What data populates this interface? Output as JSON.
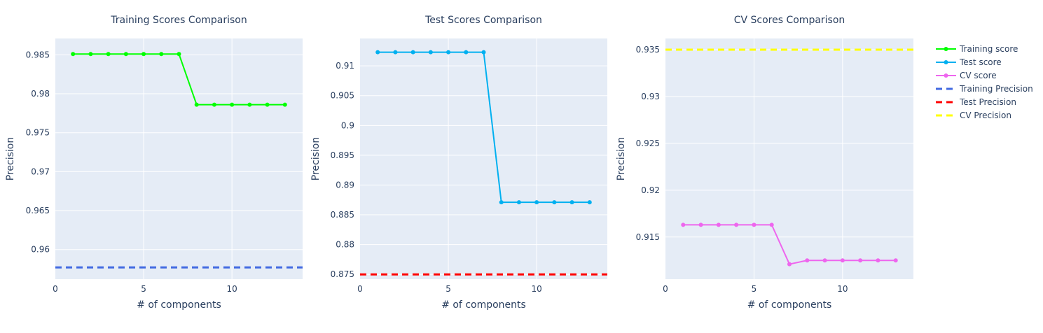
{
  "chart_data": [
    {
      "type": "line",
      "title": "Training Scores Comparison",
      "xlabel": "# of components",
      "ylabel": "Precision",
      "xlim": [
        0,
        14
      ],
      "ylim": [
        0.9562,
        0.9871
      ],
      "xticks": [
        0,
        5,
        10
      ],
      "yticks": [
        0.96,
        0.965,
        0.97,
        0.975,
        0.98,
        0.985
      ],
      "x": [
        1,
        2,
        3,
        4,
        5,
        6,
        7,
        8,
        9,
        10,
        11,
        12,
        13
      ],
      "series": [
        {
          "name": "Training score",
          "color": "#00ff00",
          "style": "lines+markers",
          "values": [
            0.9851,
            0.9851,
            0.9851,
            0.9851,
            0.9851,
            0.9851,
            0.9851,
            0.9786,
            0.9786,
            0.9786,
            0.9786,
            0.9786,
            0.9786
          ]
        },
        {
          "name": "Training Precision",
          "color": "#4169e1",
          "style": "dash",
          "hline": 0.9577
        }
      ]
    },
    {
      "type": "line",
      "title": "Test Scores Comparison",
      "xlabel": "# of components",
      "ylabel": "Precision",
      "xlim": [
        0,
        14
      ],
      "ylim": [
        0.8742,
        0.9146
      ],
      "xticks": [
        0,
        5,
        10
      ],
      "yticks": [
        0.875,
        0.88,
        0.885,
        0.89,
        0.895,
        0.9,
        0.905,
        0.91
      ],
      "x": [
        1,
        2,
        3,
        4,
        5,
        6,
        7,
        8,
        9,
        10,
        11,
        12,
        13
      ],
      "series": [
        {
          "name": "Test score",
          "color": "#00b0f0",
          "style": "lines+markers",
          "values": [
            0.9123,
            0.9123,
            0.9123,
            0.9123,
            0.9123,
            0.9123,
            0.9123,
            0.8871,
            0.8871,
            0.8871,
            0.8871,
            0.8871,
            0.8871
          ]
        },
        {
          "name": "Test Precision",
          "color": "#ff0000",
          "style": "dash",
          "hline": 0.875
        }
      ]
    },
    {
      "type": "line",
      "title": "CV Scores Comparison",
      "xlabel": "# of components",
      "ylabel": "Precision",
      "xlim": [
        0,
        14
      ],
      "ylim": [
        0.9105,
        0.9362
      ],
      "xticks": [
        0,
        5,
        10
      ],
      "yticks": [
        0.915,
        0.92,
        0.925,
        0.93,
        0.935
      ],
      "x": [
        1,
        2,
        3,
        4,
        5,
        6,
        7,
        8,
        9,
        10,
        11,
        12,
        13
      ],
      "series": [
        {
          "name": "CV score",
          "color": "#ee66ee",
          "style": "lines+markers",
          "values": [
            0.9163,
            0.9163,
            0.9163,
            0.9163,
            0.9163,
            0.9163,
            0.9121,
            0.9125,
            0.9125,
            0.9125,
            0.9125,
            0.9125,
            0.9125
          ]
        },
        {
          "name": "CV Precision",
          "color": "#ffff00",
          "style": "dash",
          "hline": 0.935
        }
      ]
    }
  ],
  "legend": {
    "position": "top-right",
    "items": [
      {
        "label": "Training score",
        "color": "#00ff00",
        "style": "lines+markers"
      },
      {
        "label": "Test score",
        "color": "#00b0f0",
        "style": "lines+markers"
      },
      {
        "label": "CV score",
        "color": "#ee66ee",
        "style": "lines+markers"
      },
      {
        "label": "Training Precision",
        "color": "#4169e1",
        "style": "dash"
      },
      {
        "label": "Test Precision",
        "color": "#ff0000",
        "style": "dash"
      },
      {
        "label": "CV Precision",
        "color": "#ffff00",
        "style": "dash"
      }
    ]
  },
  "colors": {
    "plot_bg": "#e5ecf6",
    "grid": "#ffffff",
    "text": "#2a3f5f"
  }
}
